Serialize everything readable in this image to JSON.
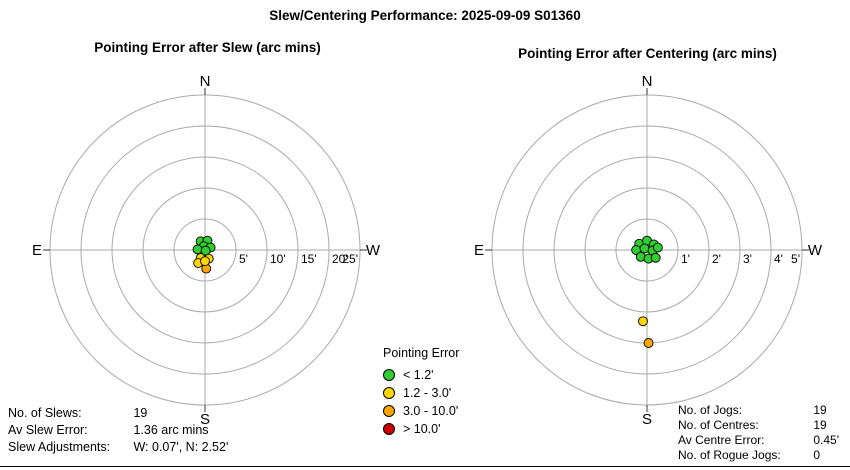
{
  "page_title": "Slew/Centering Performance: 2025-09-09 S01360",
  "chart_data": [
    {
      "type": "polar_scatter",
      "title": "Pointing Error after Slew (arc mins)",
      "units": "arc mins",
      "max_radius": 25,
      "rings": [
        5,
        10,
        15,
        20,
        25
      ],
      "ring_labels": [
        "5'",
        "10'",
        "15'",
        "20'",
        "25'"
      ],
      "compass": {
        "north": "N",
        "south": "S",
        "east": "E",
        "west": "W"
      },
      "points": [
        {
          "x": 0.2,
          "y": -3.0,
          "class": "orange"
        },
        {
          "x": -0.7,
          "y": -1.3,
          "class": "yellow"
        },
        {
          "x": 0.6,
          "y": -1.4,
          "class": "yellow"
        },
        {
          "x": -1.1,
          "y": -2.1,
          "class": "yellow"
        },
        {
          "x": 0.0,
          "y": -1.8,
          "class": "yellow"
        },
        {
          "x": -0.7,
          "y": 1.4,
          "class": "green"
        },
        {
          "x": 0.4,
          "y": 1.5,
          "class": "green"
        },
        {
          "x": -0.2,
          "y": 0.6,
          "class": "green"
        },
        {
          "x": 0.9,
          "y": 0.4,
          "class": "green"
        },
        {
          "x": -1.2,
          "y": 0.1,
          "class": "green"
        },
        {
          "x": 0.1,
          "y": -0.1,
          "class": "green"
        }
      ]
    },
    {
      "type": "polar_scatter",
      "title": "Pointing Error after Centering (arc mins)",
      "units": "arc mins",
      "max_radius": 5,
      "rings": [
        1,
        2,
        3,
        4,
        5
      ],
      "ring_labels": [
        "1'",
        "2'",
        "3'",
        "4'",
        "5'"
      ],
      "compass": {
        "north": "N",
        "south": "S",
        "east": "E",
        "west": "W"
      },
      "points": [
        {
          "x": 0.05,
          "y": -3.0,
          "class": "orange"
        },
        {
          "x": -0.13,
          "y": -2.3,
          "class": "yellow"
        },
        {
          "x": -0.25,
          "y": 0.2,
          "class": "green"
        },
        {
          "x": 0.0,
          "y": 0.3,
          "class": "green"
        },
        {
          "x": 0.22,
          "y": 0.18,
          "class": "green"
        },
        {
          "x": -0.35,
          "y": 0.0,
          "class": "green"
        },
        {
          "x": -0.08,
          "y": 0.05,
          "class": "green"
        },
        {
          "x": 0.18,
          "y": -0.02,
          "class": "green"
        },
        {
          "x": 0.35,
          "y": 0.08,
          "class": "green"
        },
        {
          "x": -0.2,
          "y": -0.22,
          "class": "green"
        },
        {
          "x": 0.05,
          "y": -0.28,
          "class": "green"
        },
        {
          "x": 0.28,
          "y": -0.25,
          "class": "green"
        }
      ]
    }
  ],
  "legend": {
    "title": "Pointing Error",
    "items": [
      {
        "label": "< 1.2'",
        "class": "green",
        "color": "#32CD32"
      },
      {
        "label": "1.2 - 3.0'",
        "class": "yellow",
        "color": "#FFD700"
      },
      {
        "label": "3.0 - 10.0'",
        "class": "orange",
        "color": "#FFA500"
      },
      {
        "label": "> 10.0'",
        "class": "red",
        "color": "#CC0000"
      }
    ]
  },
  "stats_left": {
    "rows": [
      {
        "label": "No. of Slews:",
        "value": "19"
      },
      {
        "label": "Av Slew Error:",
        "value": "1.36 arc mins"
      },
      {
        "label": "Slew Adjustments:",
        "value": "W: 0.07', N: 2.52'"
      }
    ]
  },
  "stats_right": {
    "rows": [
      {
        "label": "No. of Jogs:",
        "value": "19"
      },
      {
        "label": "No. of Centres:",
        "value": "19"
      },
      {
        "label": "Av Centre Error:",
        "value": "0.45'"
      },
      {
        "label": "No. of Rogue Jogs:",
        "value": "0"
      }
    ]
  }
}
